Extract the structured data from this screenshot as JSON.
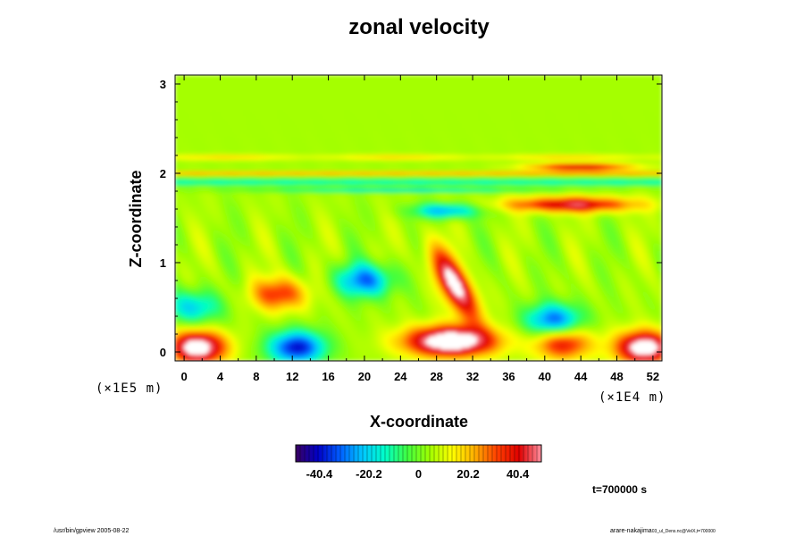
{
  "chart_data": {
    "type": "heatmap",
    "title": "zonal velocity",
    "xlabel": "X-coordinate",
    "ylabel": "Z-coordinate",
    "x_unit": "(×1E4 m)",
    "y_unit": "(×1E5 m)",
    "x_range": [
      -1,
      53
    ],
    "y_range": [
      -0.1,
      3.1
    ],
    "x_ticks": [
      "0",
      "4",
      "8",
      "12",
      "16",
      "20",
      "24",
      "28",
      "32",
      "36",
      "40",
      "44",
      "48",
      "52"
    ],
    "y_ticks": [
      "0",
      "1",
      "2",
      "3"
    ],
    "colorbar": {
      "range": [
        -50,
        50
      ],
      "ticks": [
        "-40.4",
        "-20.2",
        "0",
        "20.2",
        "40.4"
      ],
      "colors": [
        "#3a0060",
        "#0000c8",
        "#0060ff",
        "#00c8ff",
        "#00ffc8",
        "#40ff40",
        "#a0ff00",
        "#ffff00",
        "#ffb000",
        "#ff4000",
        "#e00000",
        "#ff90a0"
      ]
    },
    "features": [
      {
        "x": 29.5,
        "z": 0.12,
        "u": 60,
        "note": "white (>max)"
      },
      {
        "x": 1.5,
        "z": 0.05,
        "u": 55
      },
      {
        "x": 51.0,
        "z": 0.05,
        "u": 55
      },
      {
        "x": 30.0,
        "z": 0.75,
        "u": 48
      },
      {
        "x": 10.5,
        "z": 0.65,
        "u": 30
      },
      {
        "x": 20.0,
        "z": 0.8,
        "u": -35
      },
      {
        "x": 12.5,
        "z": 0.05,
        "u": -45
      },
      {
        "x": 29.0,
        "z": 1.58,
        "u": -30
      },
      {
        "x": 43.0,
        "z": 1.65,
        "u": 40
      },
      {
        "x": 44.0,
        "z": 2.07,
        "u": 38
      },
      {
        "x": 42.0,
        "z": 0.1,
        "u": 35
      },
      {
        "x": 41.0,
        "z": 0.35,
        "u": -38
      },
      {
        "x": 1.0,
        "z": 0.5,
        "u": -25
      }
    ],
    "time_label": "t=700000 s"
  },
  "footer": {
    "left": "/usr/bin/gpview 2005-08-22",
    "right": "arare-nakajima",
    "right_small": "03_ul_Dens.nc@VelX,t=700000"
  }
}
